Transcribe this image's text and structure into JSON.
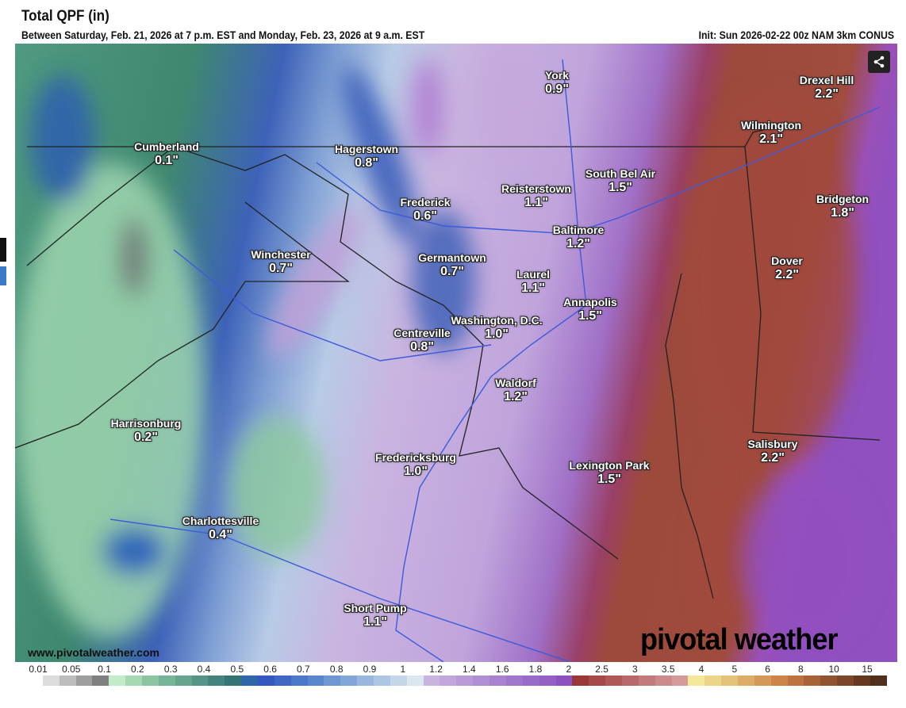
{
  "header": {
    "title": "Total QPF (in)",
    "subtitle": "Between Saturday, Feb. 21, 2026 at 7 p.m. EST and Monday, Feb. 23, 2026 at 9 a.m. EST",
    "init": "Init: Sun 2026-02-22 00z NAM 3km CONUS"
  },
  "map": {
    "site": "www.pivotalweather.com",
    "brand": "pivotal weather",
    "share_icon": "share-icon",
    "cities": [
      {
        "name": "York",
        "value": "0.9\""
      },
      {
        "name": "Drexel Hill",
        "value": "2.2\""
      },
      {
        "name": "Wilmington",
        "value": "2.1\""
      },
      {
        "name": "Cumberland",
        "value": "0.1\""
      },
      {
        "name": "Hagerstown",
        "value": "0.8\""
      },
      {
        "name": "South Bel Air",
        "value": "1.5\""
      },
      {
        "name": "Reisterstown",
        "value": "1.1\""
      },
      {
        "name": "Bridgeton",
        "value": "1.8\""
      },
      {
        "name": "Frederick",
        "value": "0.6\""
      },
      {
        "name": "Baltimore",
        "value": "1.2\""
      },
      {
        "name": "Winchester",
        "value": "0.7\""
      },
      {
        "name": "Germantown",
        "value": "0.7\""
      },
      {
        "name": "Dover",
        "value": "2.2\""
      },
      {
        "name": "Laurel",
        "value": "1.1\""
      },
      {
        "name": "Annapolis",
        "value": "1.5\""
      },
      {
        "name": "Washington, D.C.",
        "value": "1.0\""
      },
      {
        "name": "Centreville",
        "value": "0.8\""
      },
      {
        "name": "Waldorf",
        "value": "1.2\""
      },
      {
        "name": "Harrisonburg",
        "value": "0.2\""
      },
      {
        "name": "Salisbury",
        "value": "2.2\""
      },
      {
        "name": "Fredericksburg",
        "value": "1.0\""
      },
      {
        "name": "Lexington Park",
        "value": "1.5\""
      },
      {
        "name": "Charlottesville",
        "value": "0.4\""
      },
      {
        "name": "Short Pump",
        "value": "1.1\""
      }
    ]
  },
  "legend": {
    "labels": [
      "0.01",
      "0.05",
      "0.1",
      "0.2",
      "0.3",
      "0.4",
      "0.5",
      "0.6",
      "0.7",
      "0.8",
      "0.9",
      "1",
      "1.2",
      "1.4",
      "1.6",
      "1.8",
      "2",
      "2.5",
      "3",
      "3.5",
      "4",
      "5",
      "6",
      "8",
      "10",
      "15"
    ],
    "colors": [
      "#ffffff",
      "#dcdcdc",
      "#bdbdbd",
      "#9e9e9e",
      "#808080",
      "#c2ecc8",
      "#a6d8b2",
      "#8cc4a2",
      "#78b498",
      "#66a48e",
      "#559486",
      "#45847e",
      "#357474",
      "#2f66a8",
      "#3458c0",
      "#3f68c4",
      "#4a78c8",
      "#5a86cc",
      "#6e96d2",
      "#82a6d8",
      "#98b6de",
      "#aec6e4",
      "#c4d6ea",
      "#dae6f0",
      "#c9b4e0",
      "#c0a6dc",
      "#b89ad8",
      "#b08ed4",
      "#a882d0",
      "#a076cc",
      "#9a6ac8",
      "#9460c4",
      "#8e52c0",
      "#9a3838",
      "#a44848",
      "#ae5858",
      "#b86868",
      "#c27a7a",
      "#cc8a8a",
      "#d69a9a",
      "#f4e89a",
      "#ecd488",
      "#e4c078",
      "#dcac68",
      "#d49858",
      "#cc8448",
      "#be7240",
      "#a86238",
      "#925430",
      "#7c4628",
      "#663820",
      "#50301a"
    ]
  }
}
